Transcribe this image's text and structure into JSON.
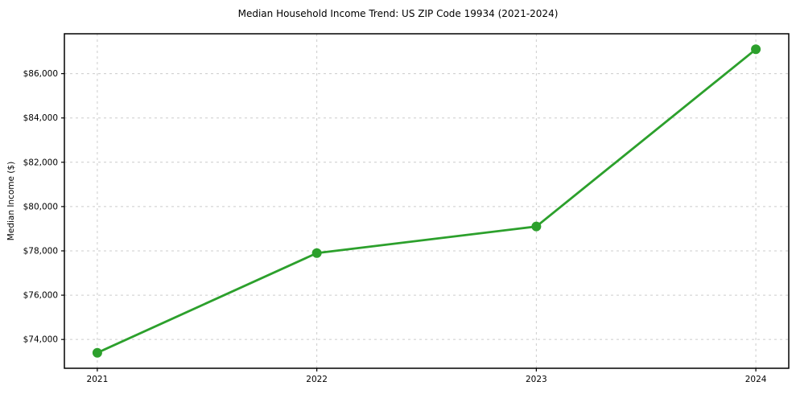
{
  "page": {
    "background_color": "#ffffff"
  },
  "chart_data": {
    "type": "line",
    "title": "Median Household Income Trend: US ZIP Code 19934 (2021-2024)",
    "xlabel": "",
    "ylabel": "Median Income ($)",
    "x": [
      2021,
      2022,
      2023,
      2024
    ],
    "x_tick_labels": [
      "2021",
      "2022",
      "2023",
      "2024"
    ],
    "series": [
      {
        "values": [
          73400,
          77900,
          79100,
          87100
        ],
        "color": "#2ca02c",
        "marker": "circle",
        "line_width": 2.8,
        "marker_radius": 6
      }
    ],
    "y_ticks": [
      74000,
      76000,
      78000,
      80000,
      82000,
      84000,
      86000
    ],
    "y_tick_labels": [
      "$74,000",
      "$76,000",
      "$78,000",
      "$80,000",
      "$82,000",
      "$84,000",
      "$86,000"
    ],
    "ylim": [
      72700,
      87800
    ],
    "xlim": [
      2020.85,
      2024.15
    ],
    "grid": "both",
    "grid_style": "dashed",
    "grid_color": "#cccccc",
    "spine_color": "#000000",
    "tick_color": "#000000",
    "text_color": "#000000",
    "legend": "none"
  }
}
